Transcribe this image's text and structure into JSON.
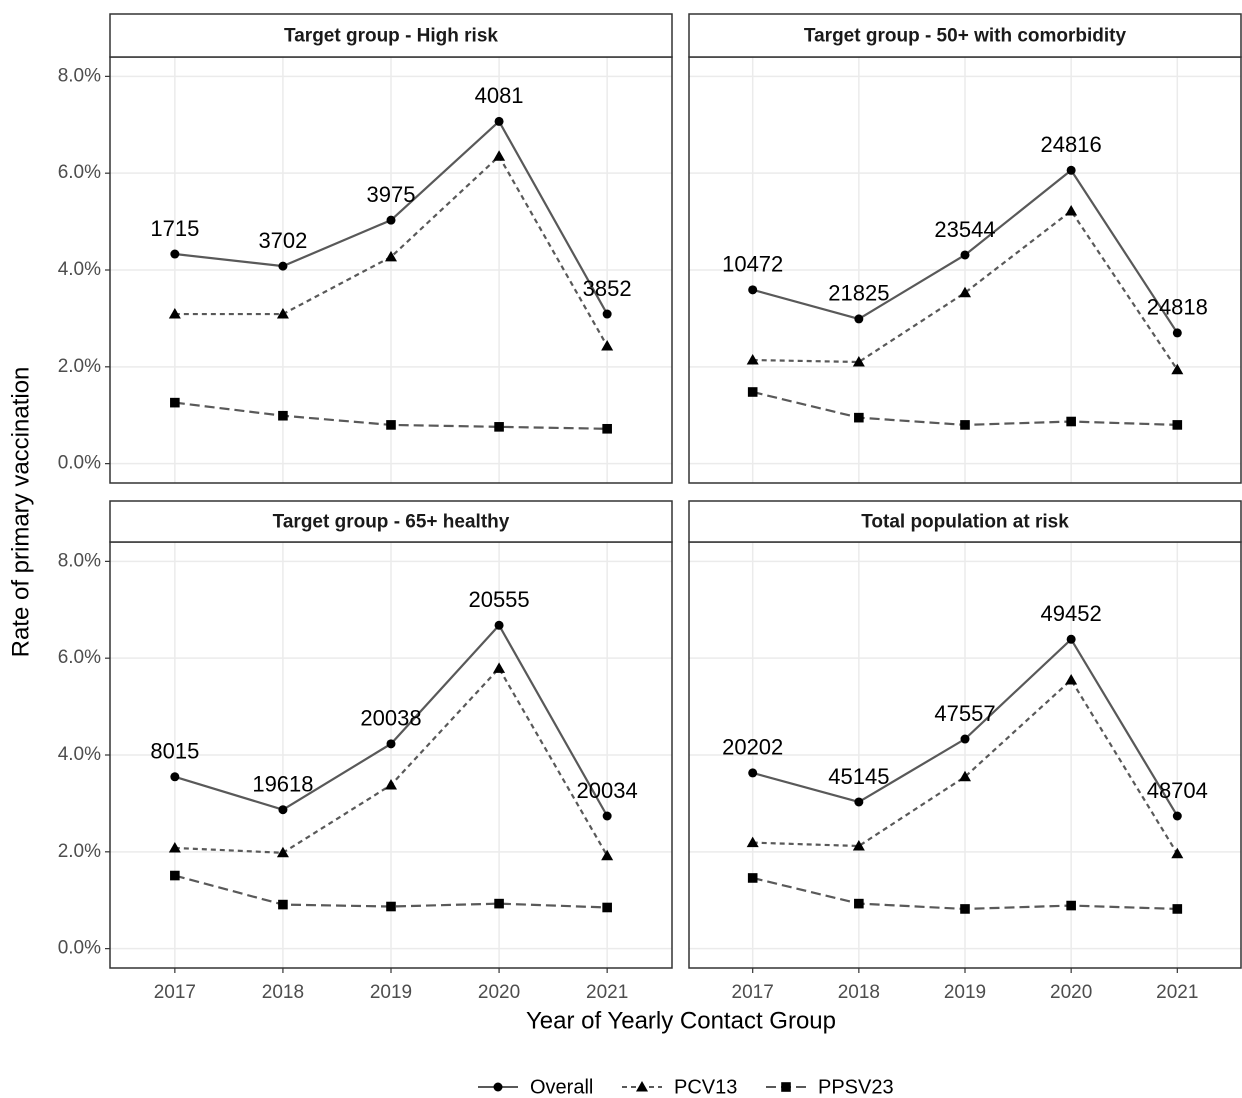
{
  "chart_data": {
    "type": "line",
    "x_label": "Year of Yearly Contact Group",
    "y_label": "Rate of primary vaccination",
    "categories": [
      "2017",
      "2018",
      "2019",
      "2020",
      "2021"
    ],
    "ylim": [
      -0.4,
      8.4
    ],
    "yticks": [
      {
        "value": 0,
        "label": "0.0%"
      },
      {
        "value": 2,
        "label": "2.0%"
      },
      {
        "value": 4,
        "label": "4.0%"
      },
      {
        "value": 6,
        "label": "6.0%"
      },
      {
        "value": 8,
        "label": "8.0%"
      }
    ],
    "grid": true,
    "legend": "bottom",
    "series": [
      {
        "name": "Overall",
        "color": "#595959",
        "linestyle": "solid",
        "marker": "circle"
      },
      {
        "name": "PCV13",
        "color": "#595959",
        "linestyle": "dotted",
        "marker": "triangle"
      },
      {
        "name": "PPSV23",
        "color": "#595959",
        "linestyle": "dashed",
        "marker": "square"
      }
    ],
    "panels": [
      {
        "title": "Target group - High risk",
        "series": [
          {
            "values": [
              4.33,
              4.08,
              5.03,
              7.07,
              3.09
            ]
          },
          {
            "values": [
              3.09,
              3.09,
              4.27,
              6.35,
              2.43
            ]
          },
          {
            "values": [
              1.26,
              0.99,
              0.8,
              0.76,
              0.72
            ]
          }
        ],
        "point_labels": [
          1715,
          3702,
          3975,
          4081,
          3852
        ]
      },
      {
        "title": "Target group - 50+ with comorbidity",
        "series": [
          {
            "values": [
              3.59,
              2.99,
              4.31,
              6.06,
              2.7
            ]
          },
          {
            "values": [
              2.14,
              2.1,
              3.53,
              5.22,
              1.94
            ]
          },
          {
            "values": [
              1.48,
              0.95,
              0.8,
              0.87,
              0.8
            ]
          }
        ],
        "point_labels": [
          10472,
          21825,
          23544,
          24816,
          24818
        ]
      },
      {
        "title": "Target group - 65+ healthy",
        "series": [
          {
            "values": [
              3.55,
              2.87,
              4.23,
              6.68,
              2.74
            ]
          },
          {
            "values": [
              2.08,
              1.98,
              3.38,
              5.79,
              1.92
            ]
          },
          {
            "values": [
              1.51,
              0.91,
              0.87,
              0.93,
              0.85
            ]
          }
        ],
        "point_labels": [
          8015,
          19618,
          20038,
          20555,
          20034
        ]
      },
      {
        "title": "Total population at risk",
        "series": [
          {
            "values": [
              3.63,
              3.03,
              4.33,
              6.39,
              2.74
            ]
          },
          {
            "values": [
              2.19,
              2.12,
              3.55,
              5.55,
              1.96
            ]
          },
          {
            "values": [
              1.46,
              0.93,
              0.82,
              0.89,
              0.82
            ]
          }
        ],
        "point_labels": [
          20202,
          45145,
          47557,
          49452,
          48704
        ]
      }
    ]
  }
}
